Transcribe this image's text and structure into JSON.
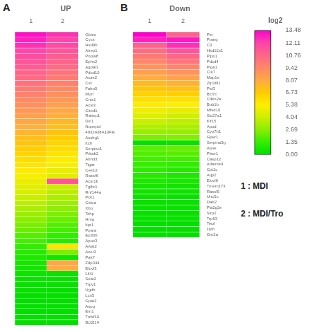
{
  "chart_data": [
    {
      "type": "heatmap",
      "title": "UP",
      "panel_label": "A",
      "columns": [
        "1",
        "2"
      ],
      "categories": [
        "Gldec",
        "Cycs",
        "Hsd9b",
        "Airep1",
        "Pnpla8",
        "Ephx2",
        "Agpat3",
        "Pdcd10",
        "Acas2",
        "Ctd",
        "Fabp5",
        "Murl",
        "Cnis1",
        "Acsl3",
        "Cited1",
        "Rabep1",
        "Dic1",
        "Nopepid",
        "4932438A13Rik",
        "Acsbg1",
        "Itch",
        "Serpine1",
        "Prkab2",
        "Abhd3",
        "Tigar",
        "Ces1d",
        "Rassf6",
        "Acsr1b",
        "Tgfbr1",
        "Rnf144a",
        "Pck1",
        "Cidea",
        "Xbp",
        "Tchp",
        "Hmg",
        "Itpr1",
        "Ppara",
        "Ep300",
        "Apoc3",
        "Awat2",
        "Acer2",
        "Pak7",
        "Zdp344",
        "Elovl3",
        "Lipg",
        "Soat2",
        "Trpv1",
        "Ugdh",
        "Lcn5",
        "Gpat2",
        "Aspg",
        "Em1",
        "Tnfsf10",
        "Bcl2l14"
      ],
      "cells": [
        [
          13.2,
          12.8,
          12.5,
          12.0,
          11.8,
          11.5,
          11.2,
          10.9,
          10.6,
          10.3,
          10.0,
          9.7,
          9.4,
          9.1,
          8.8,
          8.5,
          8.2,
          7.9,
          7.6,
          7.3,
          7.0,
          6.7,
          6.4,
          6.1,
          5.8,
          5.5,
          5.2,
          4.9,
          4.6,
          4.3,
          4.0,
          3.7,
          3.4,
          3.1,
          2.8,
          2.5,
          2.2,
          1.9,
          1.6,
          1.3,
          1.0,
          0.8,
          0.6,
          0.5,
          0.4,
          0.3,
          0.2,
          0.2,
          0.1,
          0.1,
          0.1,
          0.1,
          0.1,
          0.1
        ],
        [
          12.5,
          12.0,
          11.8,
          11.5,
          11.2,
          10.9,
          10.6,
          10.3,
          10.0,
          9.7,
          9.4,
          9.1,
          8.8,
          8.5,
          8.2,
          7.9,
          7.6,
          7.3,
          7.0,
          6.7,
          6.4,
          6.1,
          5.8,
          5.5,
          5.2,
          4.9,
          4.6,
          11.5,
          4.0,
          3.7,
          3.4,
          3.1,
          2.8,
          2.5,
          2.2,
          1.9,
          1.6,
          1.3,
          1.0,
          5.8,
          2.5,
          0.5,
          8.2,
          8.0,
          0.3,
          0.2,
          0.2,
          0.1,
          0.1,
          0.1,
          0.1,
          0.1,
          0.1,
          0.1
        ]
      ]
    },
    {
      "type": "heatmap",
      "title": "Down",
      "panel_label": "B",
      "columns": [
        "1",
        "2"
      ],
      "categories": [
        "Ptn",
        "Pparg",
        "C3",
        "Hsd11b1",
        "Plpp1",
        "Pdcd4",
        "Plga1",
        "Cul7",
        "Map1s",
        "Zfp36l1",
        "Ptd3",
        "Bcl7c",
        "Cdkn2a",
        "Bub1b",
        "Mfsd10",
        "Slc27a1",
        "Klf15",
        "Apod",
        "Cyp7b1",
        "Gper1",
        "Serpina3g",
        "Apoe",
        "Plscr1",
        "Casp12",
        "Adamts4",
        "Cpt1c",
        "Aqp2",
        "Elovl6",
        "Tmem173",
        "Rassf5",
        "Unc5c",
        "Dab2",
        "Pla2g2e",
        "Slrp2",
        "Trp63",
        "Tecrl",
        "Liph",
        "Gm2a"
      ],
      "cells": [
        [
          13.48,
          12.8,
          11.0,
          10.5,
          10.0,
          9.5,
          9.0,
          8.5,
          8.0,
          7.5,
          7.0,
          6.5,
          6.0,
          5.5,
          5.0,
          4.5,
          4.0,
          3.5,
          3.0,
          2.5,
          0.1,
          2.0,
          1.8,
          1.6,
          1.4,
          1.2,
          1.0,
          0.8,
          0.6,
          0.5,
          0.4,
          0.3,
          0.3,
          0.2,
          0.2,
          0.1,
          0.1,
          0.1
        ],
        [
          11.0,
          13.0,
          12.5,
          11.5,
          10.8,
          10.2,
          9.6,
          9.0,
          8.4,
          7.8,
          7.2,
          6.6,
          6.0,
          5.4,
          4.8,
          4.2,
          3.8,
          3.4,
          3.0,
          2.6,
          0.2,
          2.2,
          1.9,
          1.6,
          1.3,
          1.0,
          0.8,
          0.7,
          0.5,
          0.4,
          0.3,
          0.3,
          0.2,
          0.2,
          0.2,
          0.1,
          0.1,
          0.1
        ]
      ]
    }
  ],
  "colorbar": {
    "title": "log2",
    "range": [
      0,
      13.48
    ],
    "ticks": [
      13.48,
      12.11,
      10.76,
      9.42,
      8.07,
      6.73,
      5.38,
      4.04,
      2.69,
      1.35,
      {
        "value": 0,
        "label": "0.00"
      }
    ],
    "colors": [
      [
        0.0,
        "#00dd00"
      ],
      [
        0.1,
        "#33ee00"
      ],
      [
        0.2,
        "#88ee00"
      ],
      [
        0.3,
        "#ccee00"
      ],
      [
        0.4,
        "#ffee00"
      ],
      [
        0.5,
        "#ffcc00"
      ],
      [
        0.6,
        "#ffaa44"
      ],
      [
        0.7,
        "#ff8866"
      ],
      [
        0.8,
        "#ff6688"
      ],
      [
        0.9,
        "#ff44aa"
      ],
      [
        1.0,
        "#ff00cc"
      ]
    ]
  },
  "annotations": [
    "1 : MDI",
    "2 : MDI/Tro"
  ]
}
